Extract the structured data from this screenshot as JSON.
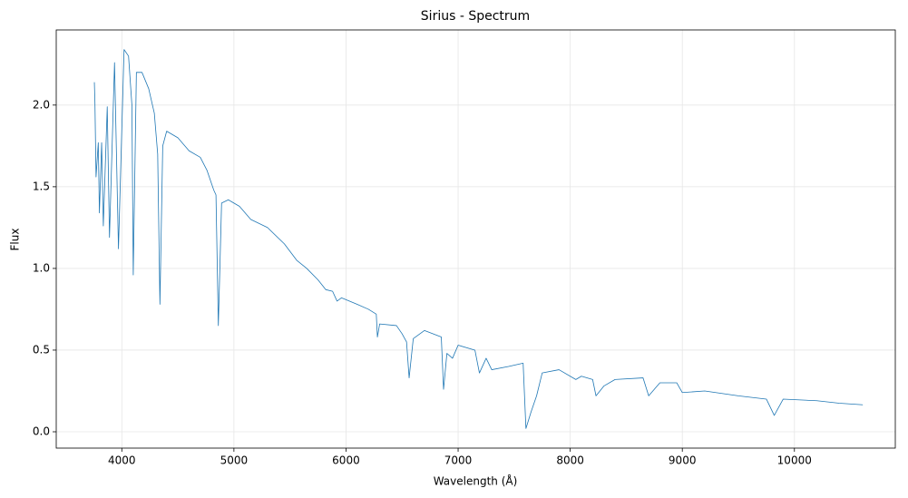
{
  "chart_data": {
    "type": "line",
    "title": "Sirius - Spectrum",
    "x_label": "Wavelength (Å)",
    "y_label": "Flux",
    "x": [
      3755,
      3760,
      3770,
      3790,
      3800,
      3820,
      3835,
      3870,
      3890,
      3935,
      3970,
      4020,
      4060,
      4090,
      4102,
      4130,
      4180,
      4240,
      4290,
      4320,
      4340,
      4365,
      4400,
      4500,
      4600,
      4700,
      4760,
      4820,
      4840,
      4861,
      4890,
      4950,
      5050,
      5150,
      5300,
      5450,
      5560,
      5650,
      5750,
      5820,
      5880,
      5920,
      5960,
      6100,
      6200,
      6270,
      6280,
      6300,
      6450,
      6500,
      6540,
      6563,
      6600,
      6700,
      6850,
      6870,
      6900,
      6950,
      7000,
      7150,
      7190,
      7250,
      7300,
      7450,
      7580,
      7605,
      7650,
      7700,
      7750,
      7900,
      8050,
      8100,
      8200,
      8230,
      8300,
      8400,
      8650,
      8700,
      8800,
      8950,
      9000,
      9200,
      9500,
      9750,
      9820,
      9900,
      10200,
      10400,
      10610
    ],
    "series": [
      {
        "name": "Flux",
        "color": "#1f77b4",
        "values": [
          2.14,
          2.02,
          1.56,
          1.77,
          1.34,
          1.77,
          1.26,
          1.99,
          1.19,
          2.26,
          1.12,
          2.34,
          2.3,
          2.0,
          0.96,
          2.2,
          2.2,
          2.1,
          1.95,
          1.7,
          0.78,
          1.75,
          1.84,
          1.8,
          1.72,
          1.68,
          1.6,
          1.48,
          1.45,
          0.65,
          1.4,
          1.42,
          1.38,
          1.3,
          1.25,
          1.15,
          1.05,
          1.0,
          0.93,
          0.87,
          0.86,
          0.8,
          0.82,
          0.78,
          0.75,
          0.72,
          0.58,
          0.66,
          0.65,
          0.6,
          0.55,
          0.33,
          0.57,
          0.62,
          0.58,
          0.26,
          0.48,
          0.45,
          0.53,
          0.5,
          0.36,
          0.45,
          0.38,
          0.4,
          0.42,
          0.02,
          0.12,
          0.22,
          0.36,
          0.38,
          0.32,
          0.34,
          0.32,
          0.22,
          0.28,
          0.32,
          0.33,
          0.22,
          0.3,
          0.3,
          0.24,
          0.25,
          0.22,
          0.2,
          0.1,
          0.2,
          0.19,
          0.175,
          0.165
        ]
      }
    ],
    "xlim": [
      3415,
      10900
    ],
    "ylim": [
      -0.1,
      2.46
    ],
    "xticks": [
      4000,
      5000,
      6000,
      7000,
      8000,
      9000,
      10000
    ],
    "yticks": [
      {
        "value": 0,
        "label": "0.0"
      },
      {
        "value": 0.5,
        "label": "0.5"
      },
      {
        "value": 1,
        "label": "1.0"
      },
      {
        "value": 1.5,
        "label": "1.5"
      },
      {
        "value": 2,
        "label": "2.0"
      }
    ],
    "grid": true
  }
}
